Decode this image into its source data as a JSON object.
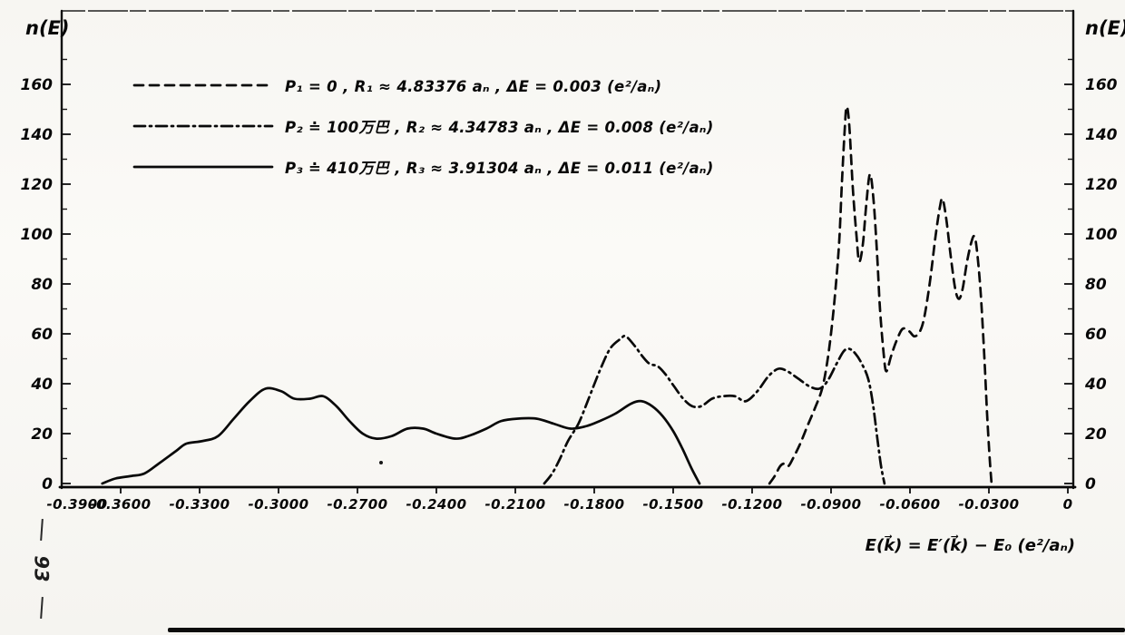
{
  "page": {
    "margin_page_number": "93"
  },
  "chart_data": {
    "type": "line",
    "title": "",
    "x_axis": {
      "label": "E(k⃗) = E′(k⃗) − E₀ (e²/aₙ)",
      "range": [
        -0.39,
        0
      ],
      "ticks": [
        {
          "label": "-0.3900",
          "e": -0.39
        },
        {
          "label": "-0.3600",
          "e": -0.36
        },
        {
          "label": "-0.3300",
          "e": -0.33
        },
        {
          "label": "-0.3000",
          "e": -0.3
        },
        {
          "label": "-0.2700",
          "e": -0.27
        },
        {
          "label": "-0.2400",
          "e": -0.24
        },
        {
          "label": "-0.2100",
          "e": -0.21
        },
        {
          "label": "-0.1800",
          "e": -0.18
        },
        {
          "label": "-0.1500",
          "e": -0.15
        },
        {
          "label": "-0.1200",
          "e": -0.12
        },
        {
          "label": "-0.0900",
          "e": -0.09
        },
        {
          "label": "-0.0600",
          "e": -0.06
        },
        {
          "label": "-0.0300",
          "e": -0.03
        },
        {
          "label": "0",
          "e": 0
        }
      ]
    },
    "y_axis": {
      "label": "n(E)",
      "label_right": "n(E)",
      "range": [
        0,
        190
      ],
      "ticks": [
        {
          "label": "0",
          "v": 0
        },
        {
          "label": "20",
          "v": 20
        },
        {
          "label": "40",
          "v": 40
        },
        {
          "label": "60",
          "v": 60
        },
        {
          "label": "80",
          "v": 80
        },
        {
          "label": "100",
          "v": 100
        },
        {
          "label": "120",
          "v": 120
        },
        {
          "label": "140",
          "v": 140
        },
        {
          "label": "160",
          "v": 160
        }
      ],
      "minor": [
        10,
        30,
        50,
        70,
        90,
        110,
        130,
        150,
        170
      ]
    },
    "legend": [
      {
        "style": "dashed",
        "label": "P₁ = 0 ,  R₁ ≈ 4.83376 aₙ ,  ΔE = 0.003 (e²/aₙ)"
      },
      {
        "style": "dash-dot",
        "label": "P₂ ≐ 100万巴 ,  R₂ ≈ 4.34783 aₙ ,  ΔE = 0.008 (e²/aₙ)"
      },
      {
        "style": "solid",
        "label": "P₃ ≐ 410万巴 ,  R₃ ≈ 3.91304 aₙ ,  ΔE = 0.011 (e²/aₙ)"
      }
    ],
    "legend_position": "top-left-inside",
    "grid": false,
    "series": [
      {
        "name": "P1",
        "style": "dashed",
        "points": [
          [
            -0.1134,
            0
          ],
          [
            -0.1114,
            3
          ],
          [
            -0.1093,
            7
          ],
          [
            -0.1076,
            8
          ],
          [
            -0.1062,
            7
          ],
          [
            -0.1045,
            10
          ],
          [
            -0.1017,
            16
          ],
          [
            -0.099,
            23
          ],
          [
            -0.0962,
            30
          ],
          [
            -0.0934,
            38
          ],
          [
            -0.0914,
            49
          ],
          [
            -0.0897,
            63
          ],
          [
            -0.0883,
            78
          ],
          [
            -0.0869,
            97
          ],
          [
            -0.0859,
            120
          ],
          [
            -0.0848,
            142
          ],
          [
            -0.0841,
            151
          ],
          [
            -0.0831,
            144
          ],
          [
            -0.0817,
            118
          ],
          [
            -0.0803,
            99
          ],
          [
            -0.0793,
            89
          ],
          [
            -0.0779,
            96
          ],
          [
            -0.0766,
            112
          ],
          [
            -0.0752,
            124
          ],
          [
            -0.0738,
            113
          ],
          [
            -0.0724,
            90
          ],
          [
            -0.0714,
            70
          ],
          [
            -0.07,
            52
          ],
          [
            -0.069,
            45
          ],
          [
            -0.0672,
            51
          ],
          [
            -0.0652,
            57
          ],
          [
            -0.0628,
            62
          ],
          [
            -0.0603,
            61
          ],
          [
            -0.0583,
            59
          ],
          [
            -0.0562,
            61
          ],
          [
            -0.0545,
            67
          ],
          [
            -0.0524,
            81
          ],
          [
            -0.0503,
            99
          ],
          [
            -0.0486,
            111
          ],
          [
            -0.0476,
            114
          ],
          [
            -0.0462,
            106
          ],
          [
            -0.0445,
            91
          ],
          [
            -0.0428,
            78
          ],
          [
            -0.0414,
            74
          ],
          [
            -0.04,
            78
          ],
          [
            -0.0383,
            89
          ],
          [
            -0.0366,
            97
          ],
          [
            -0.0355,
            99
          ],
          [
            -0.0345,
            93
          ],
          [
            -0.0331,
            76
          ],
          [
            -0.0317,
            50
          ],
          [
            -0.0307,
            28
          ],
          [
            -0.0297,
            10
          ],
          [
            -0.029,
            0
          ]
        ]
      },
      {
        "name": "P2",
        "style": "dash-dot",
        "points": [
          [
            -0.199,
            0
          ],
          [
            -0.196,
            4
          ],
          [
            -0.193,
            10
          ],
          [
            -0.19,
            17
          ],
          [
            -0.186,
            24
          ],
          [
            -0.1825,
            33
          ],
          [
            -0.178,
            45
          ],
          [
            -0.174,
            54
          ],
          [
            -0.17,
            58
          ],
          [
            -0.168,
            59
          ],
          [
            -0.1645,
            55
          ],
          [
            -0.1617,
            51
          ],
          [
            -0.159,
            48
          ],
          [
            -0.1559,
            47
          ],
          [
            -0.1531,
            44
          ],
          [
            -0.1497,
            39
          ],
          [
            -0.1462,
            34
          ],
          [
            -0.1428,
            31
          ],
          [
            -0.1393,
            31
          ],
          [
            -0.1352,
            34
          ],
          [
            -0.131,
            35
          ],
          [
            -0.1266,
            35
          ],
          [
            -0.1224,
            33
          ],
          [
            -0.118,
            37
          ],
          [
            -0.1138,
            43
          ],
          [
            -0.11,
            46
          ],
          [
            -0.1066,
            45
          ],
          [
            -0.1024,
            42
          ],
          [
            -0.0983,
            39
          ],
          [
            -0.0945,
            38
          ],
          [
            -0.0914,
            41
          ],
          [
            -0.0879,
            48
          ],
          [
            -0.0852,
            53
          ],
          [
            -0.0831,
            54
          ],
          [
            -0.0807,
            52
          ],
          [
            -0.0783,
            48
          ],
          [
            -0.0759,
            42
          ],
          [
            -0.0741,
            32
          ],
          [
            -0.0724,
            18
          ],
          [
            -0.071,
            7
          ],
          [
            -0.0697,
            0
          ]
        ]
      },
      {
        "name": "P3",
        "style": "solid",
        "points": [
          [
            -0.367,
            0
          ],
          [
            -0.362,
            2
          ],
          [
            -0.356,
            3
          ],
          [
            -0.351,
            4
          ],
          [
            -0.3455,
            8
          ],
          [
            -0.339,
            13
          ],
          [
            -0.335,
            16
          ],
          [
            -0.329,
            17
          ],
          [
            -0.323,
            19
          ],
          [
            -0.317,
            26
          ],
          [
            -0.311,
            33
          ],
          [
            -0.305,
            38
          ],
          [
            -0.299,
            37
          ],
          [
            -0.294,
            34
          ],
          [
            -0.288,
            34
          ],
          [
            -0.283,
            35
          ],
          [
            -0.278,
            31
          ],
          [
            -0.273,
            25
          ],
          [
            -0.268,
            20
          ],
          [
            -0.263,
            18
          ],
          [
            -0.257,
            19
          ],
          [
            -0.251,
            22
          ],
          [
            -0.245,
            22
          ],
          [
            -0.24,
            20
          ],
          [
            -0.233,
            18
          ],
          [
            -0.228,
            19
          ],
          [
            -0.221,
            22
          ],
          [
            -0.2155,
            25
          ],
          [
            -0.209,
            26
          ],
          [
            -0.202,
            26
          ],
          [
            -0.1955,
            24
          ],
          [
            -0.189,
            22
          ],
          [
            -0.183,
            23
          ],
          [
            -0.178,
            25
          ],
          [
            -0.172,
            28
          ],
          [
            -0.166,
            32
          ],
          [
            -0.162,
            33
          ],
          [
            -0.158,
            31
          ],
          [
            -0.154,
            27
          ],
          [
            -0.15,
            21
          ],
          [
            -0.1465,
            14
          ],
          [
            -0.143,
            6
          ],
          [
            -0.14,
            0
          ]
        ]
      }
    ]
  }
}
